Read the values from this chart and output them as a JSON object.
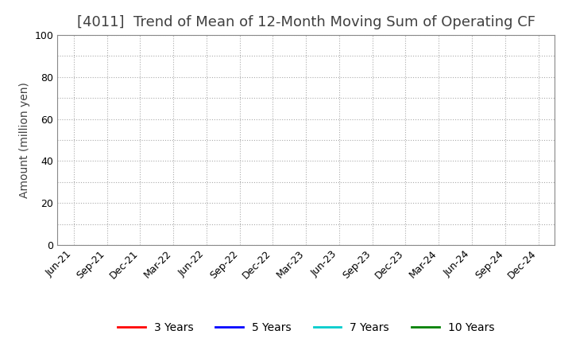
{
  "title": "[4011]  Trend of Mean of 12-Month Moving Sum of Operating CF",
  "ylabel": "Amount (million yen)",
  "ylim": [
    0,
    100
  ],
  "yticks_major": [
    0,
    20,
    40,
    60,
    80,
    100
  ],
  "yticks_minor_step": 10,
  "background_color": "#ffffff",
  "grid_color": "#aaaaaa",
  "x_labels": [
    "Jun-21",
    "Sep-21",
    "Dec-21",
    "Mar-22",
    "Jun-22",
    "Sep-22",
    "Dec-22",
    "Mar-23",
    "Jun-23",
    "Sep-23",
    "Dec-23",
    "Mar-24",
    "Jun-24",
    "Sep-24",
    "Dec-24"
  ],
  "legend_entries": [
    "3 Years",
    "5 Years",
    "7 Years",
    "10 Years"
  ],
  "legend_colors": [
    "#ff0000",
    "#0000ff",
    "#00cccc",
    "#008000"
  ],
  "title_fontsize": 13,
  "title_color": "#404040",
  "axis_fontsize": 9,
  "ylabel_fontsize": 10
}
